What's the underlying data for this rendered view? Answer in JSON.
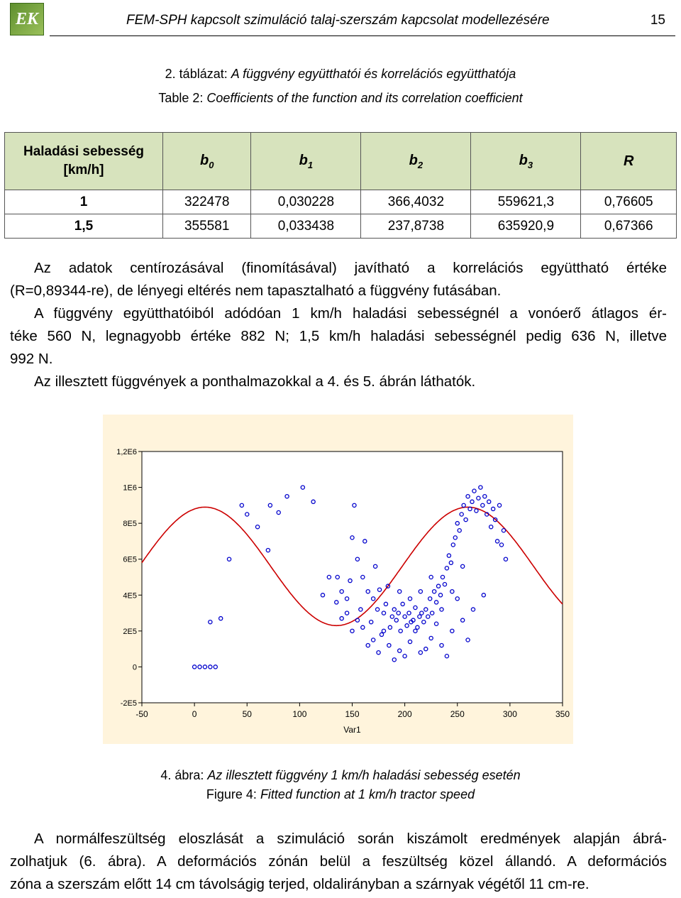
{
  "header": {
    "logo_text": "EK",
    "title": "FEM-SPH kapcsolt szimuláció talaj-szerszám kapcsolat modellezésére",
    "page_number": "15"
  },
  "table_caption": {
    "hu_label": "2. táblázat: ",
    "hu_text": "A függvény együtthatói és korrelációs együtthatója",
    "en_label": "Table 2: ",
    "en_text": "Coefficients of the function and its correlation coefficient"
  },
  "table": {
    "header": {
      "first_line1": "Haladási sebesség",
      "first_line2": "[km/h]",
      "cols": [
        {
          "base": "b",
          "sub": "0"
        },
        {
          "base": "b",
          "sub": "1"
        },
        {
          "base": "b",
          "sub": "2"
        },
        {
          "base": "b",
          "sub": "3"
        },
        {
          "base": "R",
          "sub": ""
        }
      ]
    },
    "rows": [
      [
        "1",
        "322478",
        "0,030228",
        "366,4032",
        "559621,3",
        "0,76605"
      ],
      [
        "1,5",
        "355581",
        "0,033438",
        "237,8738",
        "635920,9",
        "0,67366"
      ]
    ]
  },
  "paragraphs": {
    "p1_line1": "Az adatok centírozásával (finomításával) javítható a korrelációs együttható értéke",
    "p1_line2": "(R=0,89344-re), de lényegi eltérés nem tapasztalható a függvény futásában.",
    "p2_line1": "A függvény együtthatóiból adódóan 1 km/h haladási sebességnél a vonóerő átlagos ér-",
    "p2_line2": "téke 560 N, legnagyobb értéke 882 N; 1,5 km/h haladási sebességnél pedig 636 N, illetve",
    "p2_line3": "992 N.",
    "p3": "Az illesztett függvények a ponthalmazokkal a 4. és 5. ábrán láthatók.",
    "p4_line1": "A normálfeszültség eloszlását a szimuláció során kiszámolt eredmények alapján ábrá-",
    "p4_line2": "zolhatjuk (6. ábra). A deformációs zónán belül a feszültség közel állandó. A deformációs",
    "p4_line3": "zóna a szerszám előtt 14 cm távolságig terjed, oldalirányban a szárnyak végétől 11 cm-re."
  },
  "figure_caption": {
    "hu_label": "4. ábra: ",
    "hu_text": "Az illesztett függvény 1 km/h haladási sebesség esetén",
    "en_label": "Figure 4: ",
    "en_text": "Fitted function at 1 km/h tractor speed"
  },
  "colors": {
    "table_header_bg": "#d7e3bd",
    "plot_bg": "#fff4dc",
    "points": "#0000cc",
    "curve": "#cc0000"
  },
  "chart_data": {
    "type": "scatter",
    "xlabel": "Var1",
    "ylabel": "",
    "xlim": [
      -50,
      350
    ],
    "ylim": [
      -200000,
      1200000
    ],
    "x_ticks": [
      -50,
      0,
      50,
      100,
      150,
      200,
      250,
      300,
      350
    ],
    "y_ticks": [
      -200000,
      0,
      200000,
      400000,
      600000,
      800000,
      1000000,
      1200000
    ],
    "y_tick_labels": [
      "-2E5",
      "0",
      "2E5",
      "4E5",
      "6E5",
      "8E5",
      "1E6",
      "1,2E6"
    ],
    "grid": false,
    "fitted_curve": {
      "form": "b0 + b1*x + b2*x... fitted sinusoid",
      "mean": 560000,
      "amplitude": 330000,
      "period": 250,
      "peak_x": 10
    },
    "points": [
      [
        0,
        0
      ],
      [
        5,
        0
      ],
      [
        10,
        0
      ],
      [
        15,
        0
      ],
      [
        20,
        0
      ],
      [
        15,
        250000
      ],
      [
        25,
        270000
      ],
      [
        33,
        600000
      ],
      [
        45,
        900000
      ],
      [
        50,
        850000
      ],
      [
        60,
        780000
      ],
      [
        70,
        650000
      ],
      [
        72,
        900000
      ],
      [
        80,
        860000
      ],
      [
        88,
        950000
      ],
      [
        103,
        1000000
      ],
      [
        113,
        920000
      ],
      [
        122,
        400000
      ],
      [
        128,
        500000
      ],
      [
        136,
        500000
      ],
      [
        140,
        270000
      ],
      [
        145,
        380000
      ],
      [
        148,
        480000
      ],
      [
        150,
        720000
      ],
      [
        152,
        900000
      ],
      [
        155,
        600000
      ],
      [
        158,
        320000
      ],
      [
        160,
        500000
      ],
      [
        162,
        700000
      ],
      [
        165,
        420000
      ],
      [
        168,
        250000
      ],
      [
        170,
        380000
      ],
      [
        172,
        560000
      ],
      [
        174,
        320000
      ],
      [
        176,
        430000
      ],
      [
        178,
        180000
      ],
      [
        180,
        300000
      ],
      [
        182,
        350000
      ],
      [
        184,
        450000
      ],
      [
        186,
        220000
      ],
      [
        188,
        280000
      ],
      [
        190,
        320000
      ],
      [
        192,
        260000
      ],
      [
        194,
        300000
      ],
      [
        196,
        200000
      ],
      [
        198,
        350000
      ],
      [
        200,
        280000
      ],
      [
        202,
        230000
      ],
      [
        204,
        300000
      ],
      [
        206,
        250000
      ],
      [
        208,
        260000
      ],
      [
        210,
        330000
      ],
      [
        212,
        220000
      ],
      [
        214,
        280000
      ],
      [
        216,
        300000
      ],
      [
        218,
        250000
      ],
      [
        220,
        320000
      ],
      [
        222,
        280000
      ],
      [
        224,
        380000
      ],
      [
        226,
        300000
      ],
      [
        228,
        420000
      ],
      [
        230,
        360000
      ],
      [
        232,
        450000
      ],
      [
        234,
        400000
      ],
      [
        236,
        500000
      ],
      [
        238,
        460000
      ],
      [
        240,
        550000
      ],
      [
        242,
        620000
      ],
      [
        244,
        580000
      ],
      [
        246,
        680000
      ],
      [
        248,
        720000
      ],
      [
        250,
        800000
      ],
      [
        252,
        760000
      ],
      [
        254,
        850000
      ],
      [
        256,
        900000
      ],
      [
        258,
        820000
      ],
      [
        260,
        950000
      ],
      [
        262,
        880000
      ],
      [
        264,
        920000
      ],
      [
        266,
        980000
      ],
      [
        268,
        870000
      ],
      [
        270,
        940000
      ],
      [
        272,
        1000000
      ],
      [
        274,
        900000
      ],
      [
        276,
        950000
      ],
      [
        278,
        850000
      ],
      [
        280,
        920000
      ],
      [
        282,
        780000
      ],
      [
        284,
        880000
      ],
      [
        286,
        820000
      ],
      [
        288,
        700000
      ],
      [
        290,
        900000
      ],
      [
        292,
        680000
      ],
      [
        294,
        760000
      ],
      [
        296,
        600000
      ],
      [
        185,
        120000
      ],
      [
        195,
        90000
      ],
      [
        205,
        140000
      ],
      [
        215,
        80000
      ],
      [
        225,
        160000
      ],
      [
        235,
        120000
      ],
      [
        245,
        200000
      ],
      [
        255,
        260000
      ],
      [
        265,
        320000
      ],
      [
        275,
        400000
      ],
      [
        190,
        40000
      ],
      [
        200,
        60000
      ],
      [
        220,
        100000
      ],
      [
        240,
        60000
      ],
      [
        260,
        150000
      ],
      [
        170,
        150000
      ],
      [
        165,
        120000
      ],
      [
        175,
        80000
      ],
      [
        180,
        200000
      ],
      [
        160,
        220000
      ],
      [
        150,
        200000
      ],
      [
        155,
        260000
      ],
      [
        145,
        300000
      ],
      [
        140,
        420000
      ],
      [
        135,
        360000
      ],
      [
        215,
        420000
      ],
      [
        225,
        500000
      ],
      [
        235,
        320000
      ],
      [
        245,
        420000
      ],
      [
        255,
        560000
      ],
      [
        205,
        380000
      ],
      [
        195,
        420000
      ],
      [
        210,
        200000
      ],
      [
        230,
        240000
      ],
      [
        250,
        380000
      ]
    ]
  }
}
